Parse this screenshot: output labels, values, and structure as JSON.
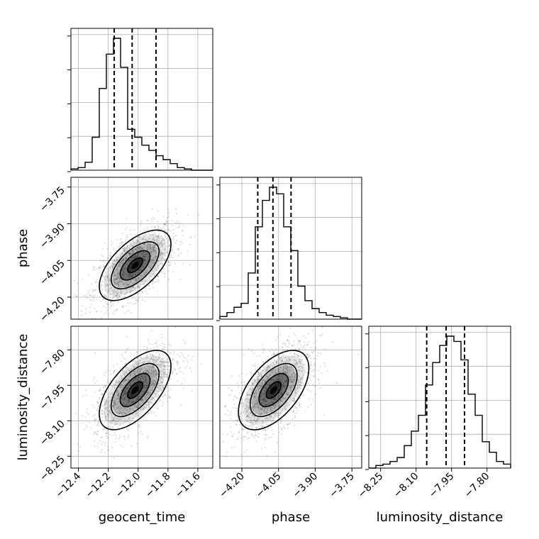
{
  "chart_data": {
    "type": "corner",
    "parameters": [
      "geocent_time",
      "phase",
      "luminosity_distance"
    ],
    "ranges": {
      "geocent_time": [
        -12.45,
        -11.5
      ],
      "phase": [
        -4.29,
        -3.71
      ],
      "luminosity_distance": [
        -8.3,
        -7.7
      ]
    },
    "tick_labels": {
      "geocent_time": [
        "−12.4",
        "−12.2",
        "−12.0",
        "−11.8",
        "−11.6"
      ],
      "phase": [
        "−4.20",
        "−4.05",
        "−3.90",
        "−3.75"
      ],
      "luminosity_distance": [
        "−8.25",
        "−8.10",
        "−7.95",
        "−7.80"
      ]
    },
    "tick_values": {
      "geocent_time": [
        -12.4,
        -12.2,
        -12.0,
        -11.8,
        -11.6
      ],
      "phase": [
        -4.2,
        -4.05,
        -3.9,
        -3.75
      ],
      "luminosity_distance": [
        -8.25,
        -8.1,
        -7.95,
        -7.8
      ]
    },
    "histograms": {
      "geocent_time": {
        "counts": [
          1,
          2,
          6,
          25,
          62,
          88,
          100,
          78,
          31,
          25,
          19,
          15,
          11,
          8,
          5,
          2,
          1,
          0,
          0,
          0
        ],
        "quantiles": [
          -12.16,
          -12.04,
          -11.88
        ]
      },
      "phase": {
        "counts": [
          2,
          5,
          9,
          12,
          35,
          70,
          90,
          100,
          95,
          70,
          52,
          25,
          14,
          8,
          5,
          3,
          2,
          1,
          0,
          0
        ],
        "quantiles": [
          -4.135,
          -4.073,
          -3.999
        ]
      },
      "luminosity_distance": {
        "counts": [
          0,
          2,
          3,
          5,
          8,
          17,
          28,
          40,
          63,
          80,
          93,
          100,
          96,
          82,
          56,
          40,
          20,
          12,
          5,
          3
        ],
        "quantiles": [
          -8.055,
          -7.973,
          -7.895
        ]
      }
    },
    "correlations": {
      "phase|geocent_time": 0.6,
      "luminosity_distance|geocent_time": 0.6,
      "luminosity_distance|phase": 0.55
    },
    "means": {
      "geocent_time": -12.02,
      "phase": -4.07,
      "luminosity_distance": -7.97
    },
    "stds": {
      "geocent_time": 0.1,
      "phase": 0.06,
      "luminosity_distance": 0.07
    },
    "grid": true
  }
}
